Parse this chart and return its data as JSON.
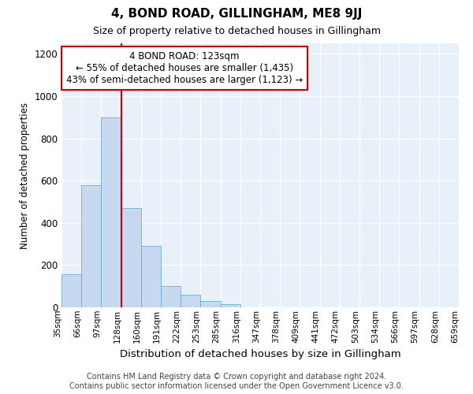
{
  "title": "4, BOND ROAD, GILLINGHAM, ME8 9JJ",
  "subtitle": "Size of property relative to detached houses in Gillingham",
  "xlabel": "Distribution of detached houses by size in Gillingham",
  "ylabel": "Number of detached properties",
  "bar_values": [
    155,
    580,
    900,
    470,
    290,
    100,
    60,
    28,
    15,
    0,
    0,
    0,
    0,
    0,
    0,
    0,
    0,
    0,
    0,
    0
  ],
  "bin_labels": [
    "35sqm",
    "66sqm",
    "97sqm",
    "128sqm",
    "160sqm",
    "191sqm",
    "222sqm",
    "253sqm",
    "285sqm",
    "316sqm",
    "347sqm",
    "378sqm",
    "409sqm",
    "441sqm",
    "472sqm",
    "503sqm",
    "534sqm",
    "566sqm",
    "597sqm",
    "628sqm",
    "659sqm"
  ],
  "bar_color": "#c6d9f0",
  "bar_edge_color": "#6baed6",
  "background_color": "#e8f0fa",
  "grid_color": "#ffffff",
  "vline_x_index": 3,
  "vline_color": "#cc0000",
  "annotation_line1": "4 BOND ROAD: 123sqm",
  "annotation_line2": "← 55% of detached houses are smaller (1,435)",
  "annotation_line3": "43% of semi-detached houses are larger (1,123) →",
  "annotation_box_color": "white",
  "annotation_box_edge_color": "#cc0000",
  "ylim": [
    0,
    1250
  ],
  "yticks": [
    0,
    200,
    400,
    600,
    800,
    1000,
    1200
  ],
  "footer_line1": "Contains HM Land Registry data © Crown copyright and database right 2024.",
  "footer_line2": "Contains public sector information licensed under the Open Government Licence v3.0."
}
